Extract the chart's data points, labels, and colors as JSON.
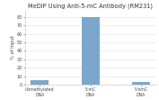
{
  "title": "MeDIP Using Anti-5-mC Antibody (RM231)",
  "ylabel": "% of Input",
  "categories": [
    "Unmethylated DNA",
    "5-mC DNA",
    "5-hmC DNA"
  ],
  "values": [
    5,
    80,
    3
  ],
  "bar_color": "#7ba7cc",
  "ylim": [
    0,
    88
  ],
  "yticks": [
    0,
    10,
    20,
    30,
    40,
    50,
    60,
    70,
    80
  ],
  "title_fontsize": 4.8,
  "ylabel_fontsize": 3.8,
  "ytick_fontsize": 3.5,
  "xtick_fontsize": 3.3,
  "background_color": "#ffffff",
  "bar_width": 0.35
}
